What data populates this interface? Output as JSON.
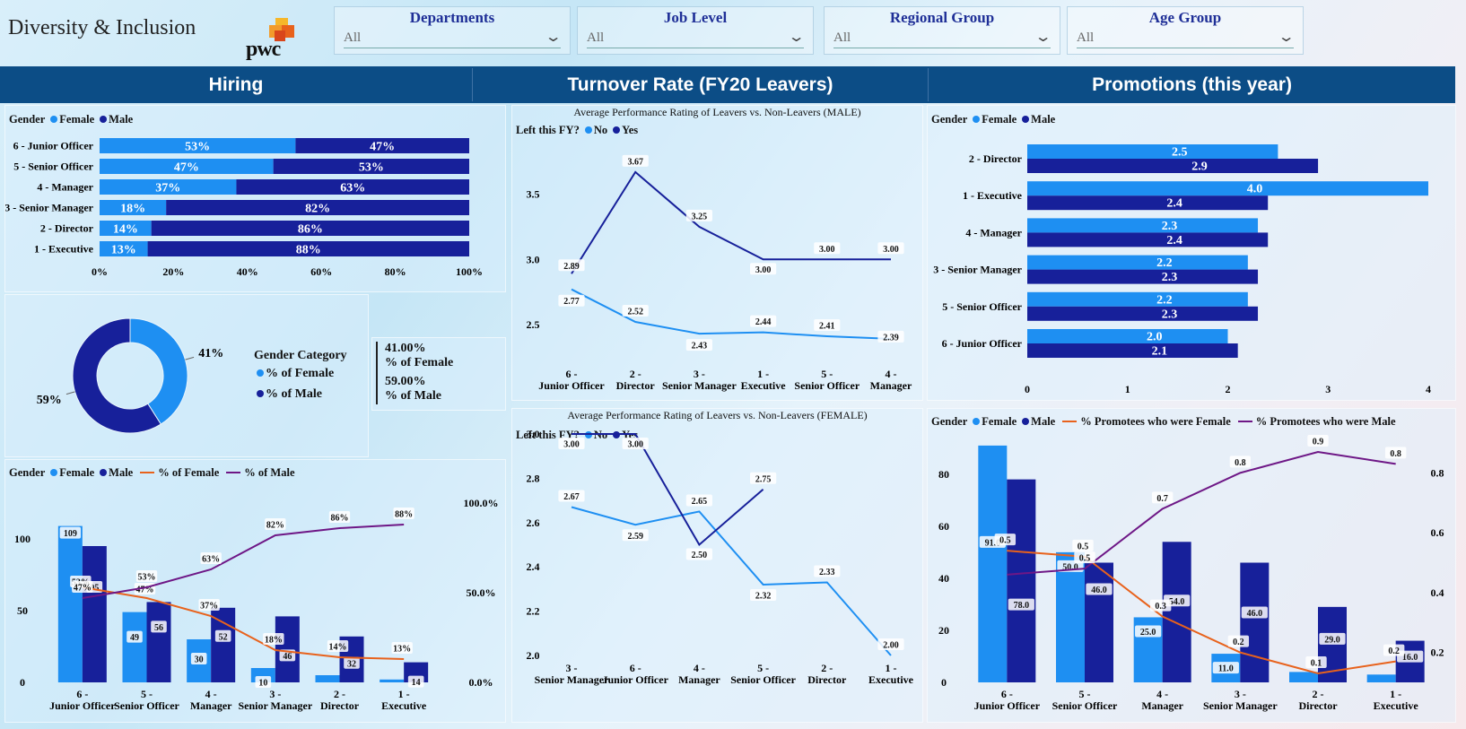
{
  "header": {
    "title": "Diversity & Inclusion",
    "logo_text": "pwc"
  },
  "filters": [
    {
      "label": "Departments",
      "value": "All"
    },
    {
      "label": "Job Level",
      "value": "All"
    },
    {
      "label": "Regional Group",
      "value": "All"
    },
    {
      "label": "Age Group",
      "value": "All"
    }
  ],
  "sections": {
    "hiring": "Hiring",
    "turnover": "Turnover Rate (FY20 Leavers)",
    "promotions": "Promotions (this year)"
  },
  "legends": {
    "gender": "Gender",
    "female": "Female",
    "male": "Male",
    "pct_female": "% of Female",
    "pct_male": "% of Male",
    "left_fy": "Left this FY?",
    "no": "No",
    "yes": "Yes",
    "gender_category": "Gender Category",
    "pct_promo_female": "% Promotees who were Female",
    "pct_promo_male": "% Promotees who were Male"
  },
  "colors": {
    "female": "#1e8ff2",
    "male": "#17209a",
    "orange": "#e8621c",
    "purple": "#6e1786",
    "band": "#0c4d86"
  },
  "kpi": {
    "female_value": "41.00%",
    "female_label": "% of Female",
    "male_value": "59.00%",
    "male_label": "% of Male"
  },
  "chart_data": [
    {
      "id": "hiring_stacked",
      "type": "bar",
      "orientation": "horizontal",
      "stacked": "100%",
      "categories": [
        "6 - Junior Officer",
        "5 - Senior Officer",
        "4 - Manager",
        "3 - Senior Manager",
        "2 - Director",
        "1 - Executive"
      ],
      "series": [
        {
          "name": "Female",
          "values": [
            53,
            47,
            37,
            18,
            14,
            13
          ],
          "labels": [
            "53%",
            "47%",
            "37%",
            "18%",
            "14%",
            "13%"
          ]
        },
        {
          "name": "Male",
          "values": [
            47,
            53,
            63,
            82,
            86,
            88
          ],
          "labels": [
            "47%",
            "53%",
            "63%",
            "82%",
            "86%",
            "88%"
          ]
        }
      ],
      "x_ticks": [
        "0%",
        "20%",
        "40%",
        "60%",
        "80%",
        "100%"
      ],
      "xlim": [
        0,
        100
      ]
    },
    {
      "id": "gender_donut",
      "type": "pie",
      "donut": true,
      "slices": [
        {
          "name": "% of Female",
          "value": 41,
          "label": "41%"
        },
        {
          "name": "% of Male",
          "value": 59,
          "label": "59%"
        }
      ]
    },
    {
      "id": "hiring_combo",
      "type": "bar",
      "categories": [
        "6 - Junior Officer",
        "5 - Senior Officer",
        "4 - Manager",
        "3 - Senior Manager",
        "2 - Director",
        "1 - Executive"
      ],
      "series": [
        {
          "name": "Female",
          "values": [
            109,
            49,
            30,
            10,
            5,
            2
          ],
          "labels": [
            "109",
            "49",
            "30",
            "10",
            "",
            ""
          ]
        },
        {
          "name": "Male",
          "values": [
            95,
            56,
            52,
            46,
            32,
            14
          ],
          "labels": [
            "95",
            "56",
            "52",
            "46",
            "32",
            "14"
          ]
        }
      ],
      "lines": [
        {
          "name": "% of Female",
          "values": [
            53,
            47,
            37,
            18,
            14,
            13
          ],
          "labels": [
            "53%",
            "47%",
            "37%",
            "18%",
            "14%",
            "13%"
          ]
        },
        {
          "name": "% of Male",
          "values": [
            47,
            53,
            63,
            82,
            86,
            88
          ],
          "labels": [
            "47%",
            "53%",
            "63%",
            "82%",
            "86%",
            "88%"
          ]
        }
      ],
      "y_ticks": [
        "0",
        "50",
        "100"
      ],
      "ylim": [
        0,
        125
      ],
      "y2_ticks": [
        "0.0%",
        "50.0%",
        "100.0%"
      ],
      "y2lim": [
        0,
        100
      ]
    },
    {
      "id": "perf_male",
      "type": "line",
      "title": "Average Performance Rating of Leavers vs. Non-Leavers (MALE)",
      "categories": [
        "6 - Junior Officer",
        "2 - Director",
        "3 - Senior Manager",
        "1 - Executive",
        "5 - Senior Officer",
        "4 - Manager"
      ],
      "series": [
        {
          "name": "No",
          "values": [
            2.77,
            2.52,
            2.43,
            2.44,
            2.41,
            2.39
          ]
        },
        {
          "name": "Yes",
          "values": [
            2.89,
            3.67,
            3.25,
            3.0,
            3.0,
            3.0
          ]
        }
      ],
      "y_ticks": [
        "2.5",
        "3.0",
        "3.5"
      ],
      "ylim": [
        2.3,
        3.8
      ]
    },
    {
      "id": "perf_female",
      "type": "line",
      "title": "Average Performance Rating of Leavers vs. Non-Leavers (FEMALE)",
      "categories": [
        "3 - Senior Manager",
        "6 - Junior Officer",
        "4 - Manager",
        "5 - Senior Officer",
        "2 - Director",
        "1 - Executive"
      ],
      "series": [
        {
          "name": "No",
          "values": [
            2.67,
            2.59,
            2.65,
            2.32,
            2.33,
            2.0
          ]
        },
        {
          "name": "Yes",
          "values": [
            3.0,
            3.0,
            2.5,
            2.75,
            null,
            null
          ]
        }
      ],
      "y_ticks": [
        "2.0",
        "2.2",
        "2.4",
        "2.6",
        "2.8",
        "3.0"
      ],
      "ylim": [
        2.0,
        3.0
      ]
    },
    {
      "id": "promo_rating",
      "type": "bar",
      "orientation": "horizontal",
      "categories": [
        "2 - Director",
        "1 - Executive",
        "4 - Manager",
        "3 - Senior Manager",
        "5 - Senior Officer",
        "6 - Junior Officer"
      ],
      "series": [
        {
          "name": "Female",
          "values": [
            2.5,
            4.0,
            2.3,
            2.2,
            2.2,
            2.0
          ],
          "labels": [
            "2.5",
            "4.0",
            "2.3",
            "2.2",
            "2.2",
            "2.0"
          ]
        },
        {
          "name": "Male",
          "values": [
            2.9,
            2.4,
            2.4,
            2.3,
            2.3,
            2.1
          ],
          "labels": [
            "2.9",
            "2.4",
            "2.4",
            "2.3",
            "2.3",
            "2.1"
          ]
        }
      ],
      "x_ticks": [
        "0",
        "1",
        "2",
        "3",
        "4"
      ],
      "xlim": [
        0,
        4
      ]
    },
    {
      "id": "promo_combo",
      "type": "bar",
      "categories": [
        "6 - Junior Officer",
        "5 - Senior Officer",
        "4 - Manager",
        "3 - Senior Manager",
        "2 - Director",
        "1 - Executive"
      ],
      "series": [
        {
          "name": "Female",
          "values": [
            91,
            50,
            25,
            11,
            4,
            3
          ],
          "labels": [
            "91.0",
            "50.0",
            "25.0",
            "11.0",
            "",
            ""
          ]
        },
        {
          "name": "Male",
          "values": [
            78,
            46,
            54,
            46,
            29,
            16
          ],
          "labels": [
            "78.0",
            "46.0",
            "54.0",
            "46.0",
            "29.0",
            "16.0"
          ]
        }
      ],
      "lines": [
        {
          "name": "% Promotees who were Female",
          "values": [
            0.54,
            0.52,
            0.32,
            0.2,
            0.13,
            0.17
          ],
          "labels": [
            "0.5",
            "0.5",
            "0.3",
            "0.2",
            "0.1",
            "0.2"
          ]
        },
        {
          "name": "% Promotees who were Male",
          "values": [
            0.46,
            0.48,
            0.68,
            0.8,
            0.87,
            0.83
          ],
          "labels": [
            "",
            "0.5",
            "0.7",
            "0.8",
            "0.9",
            "0.8"
          ]
        }
      ],
      "y_ticks": [
        "0",
        "20",
        "40",
        "60",
        "80"
      ],
      "ylim": [
        0,
        92
      ],
      "y2_ticks": [
        "0.2",
        "0.4",
        "0.6",
        "0.8"
      ],
      "y2lim": [
        0.1,
        0.9
      ]
    }
  ]
}
